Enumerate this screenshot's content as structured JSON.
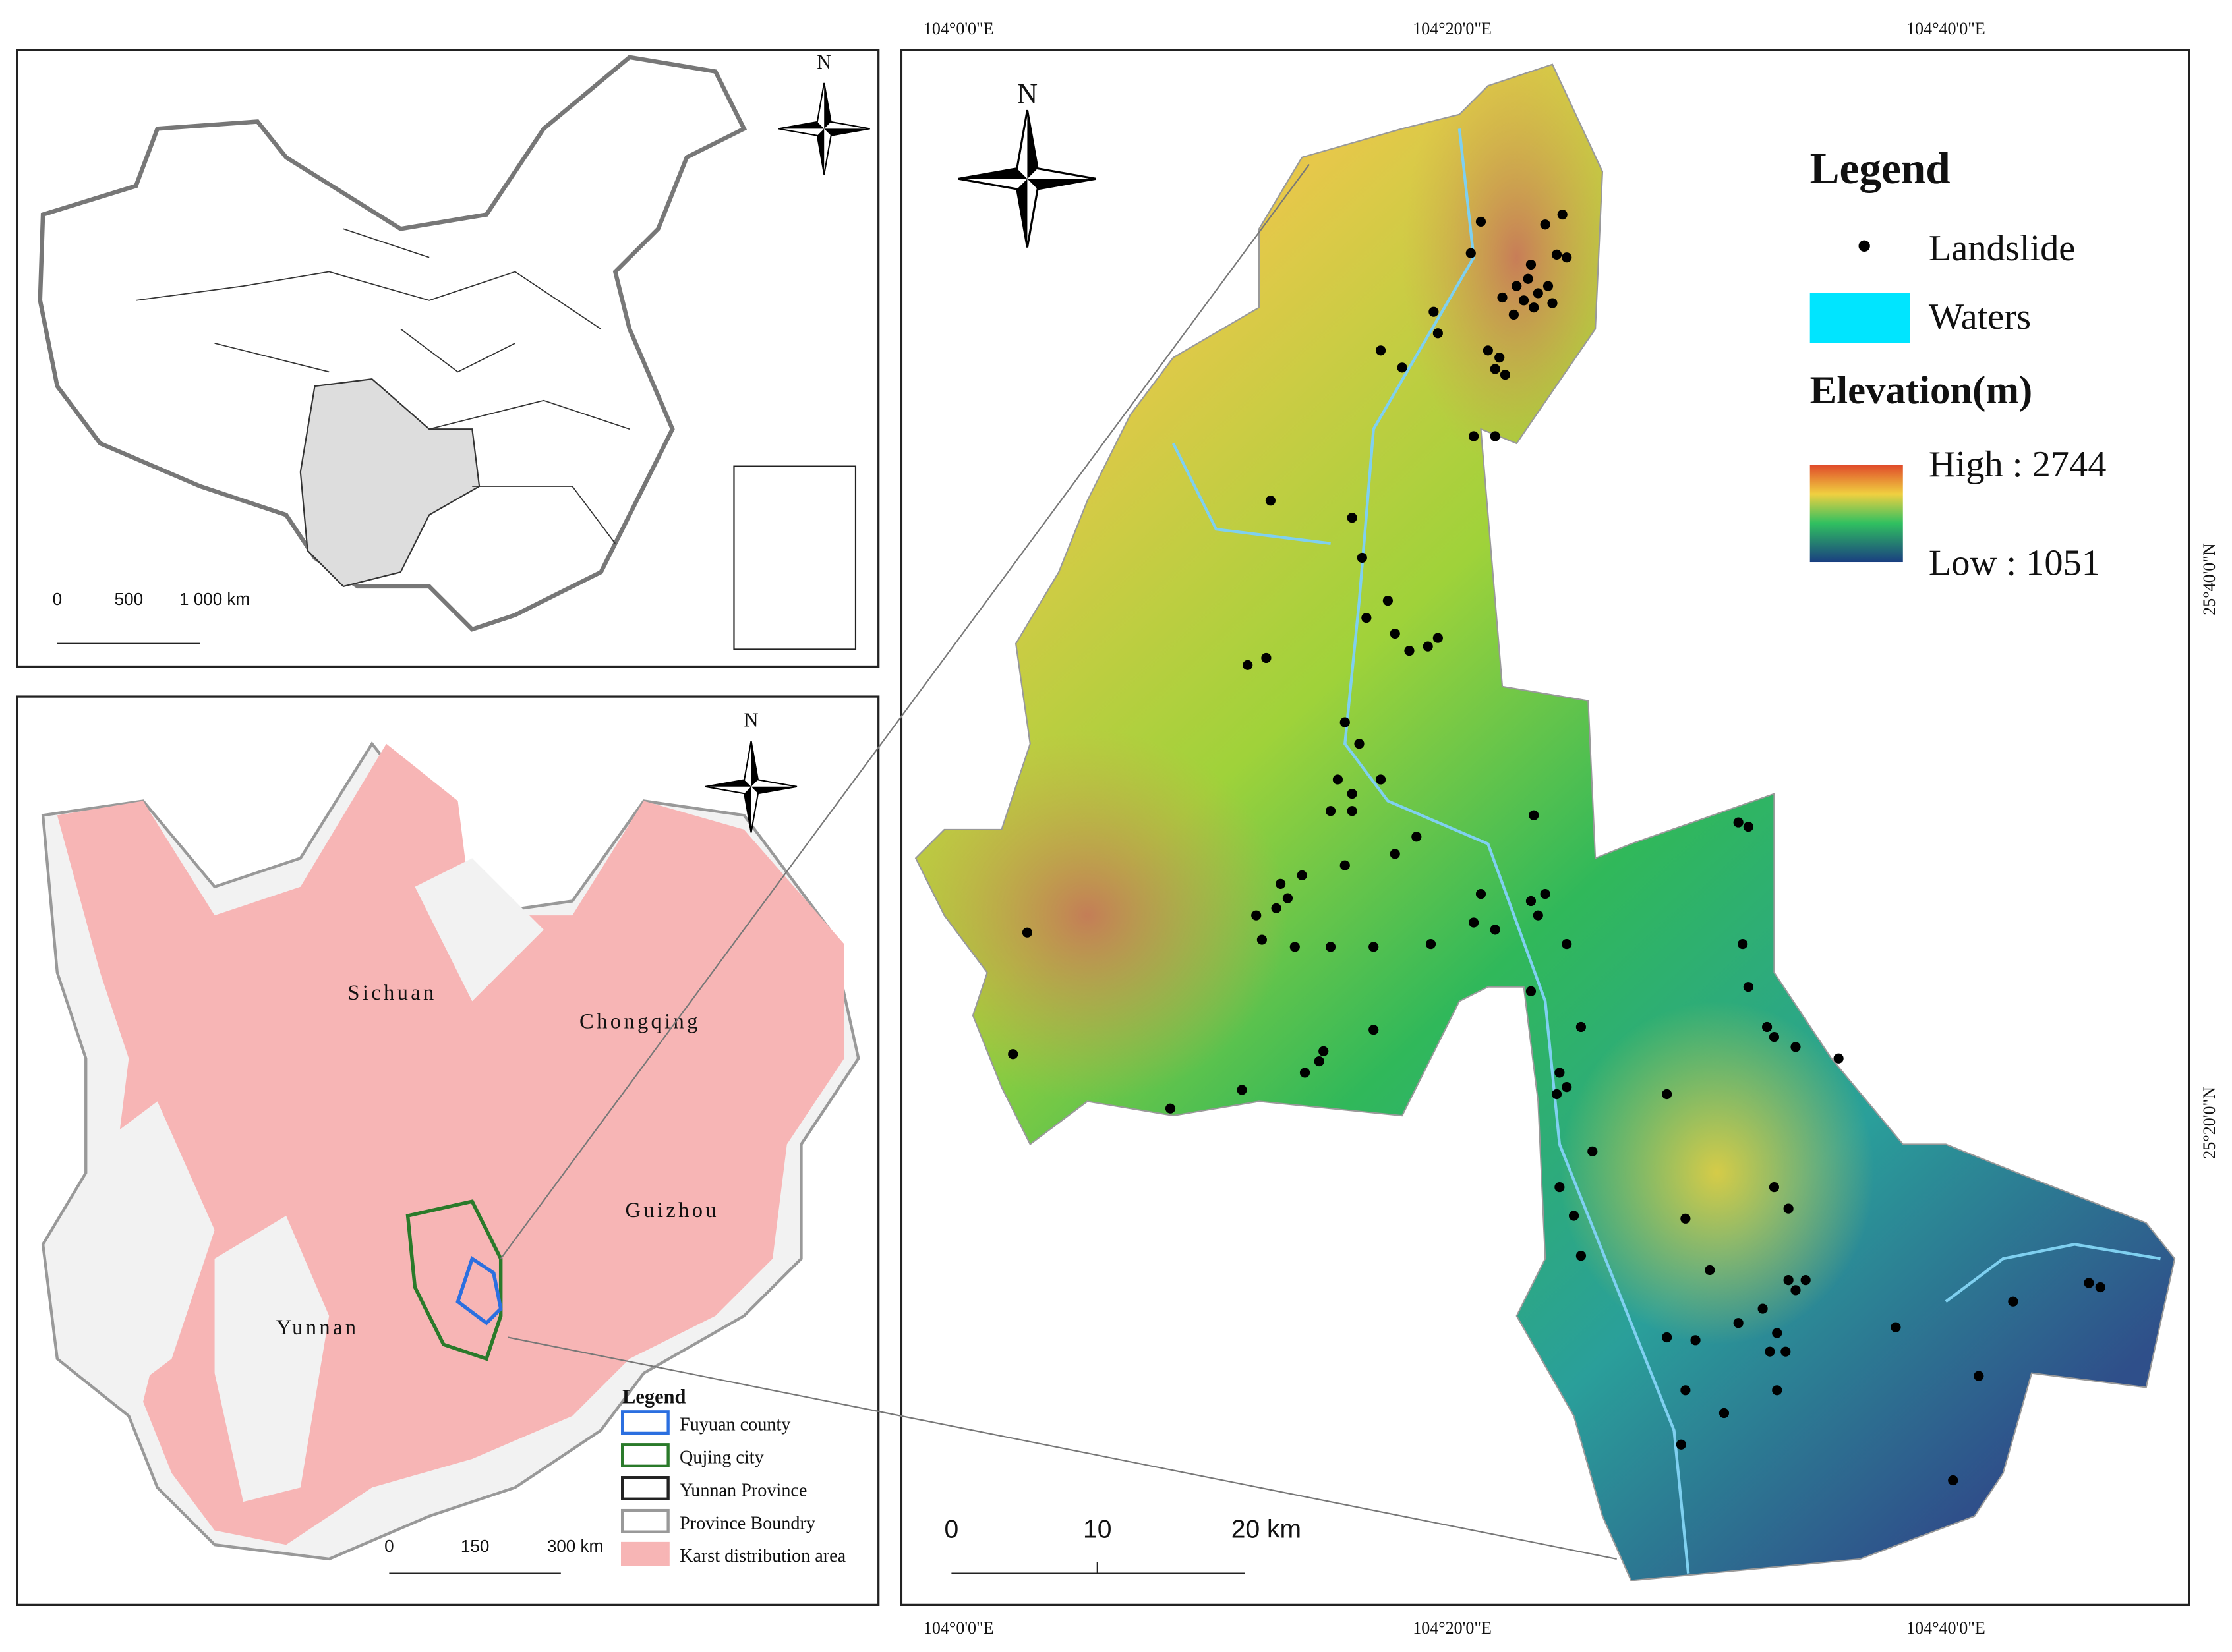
{
  "china_panel": {
    "north": "N",
    "scale_labels": [
      "0",
      "500",
      "1 000 km"
    ]
  },
  "regional_panel": {
    "north": "N",
    "places": [
      "Sichuan",
      "Chongqing",
      "Guizhou",
      "Yunnan"
    ],
    "legend": {
      "title": "Legend",
      "items": [
        "Fuyuan county",
        "Qujing city",
        "Yunnan Province",
        "Province Boundry",
        "Karst distribution area"
      ]
    },
    "scale_labels": [
      "0",
      "150",
      "300 km"
    ]
  },
  "study_panel": {
    "north": "N",
    "legend": {
      "title": "Legend",
      "landslide": "Landslide",
      "waters": "Waters",
      "elevation_title": "Elevation(m)",
      "high": "High : 2744",
      "low": "Low : 1051"
    },
    "scale_labels": [
      "0",
      "10",
      "20 km"
    ],
    "top_labels": [
      "104°0'0\"E",
      "104°20'0\"E",
      "104°40'0\"E"
    ],
    "bottom_labels": [
      "104°0'0\"E",
      "104°20'0\"E",
      "104°40'0\"E"
    ],
    "right_labels": [
      "25°40'0\"N",
      "25°20'0\"N"
    ]
  }
}
